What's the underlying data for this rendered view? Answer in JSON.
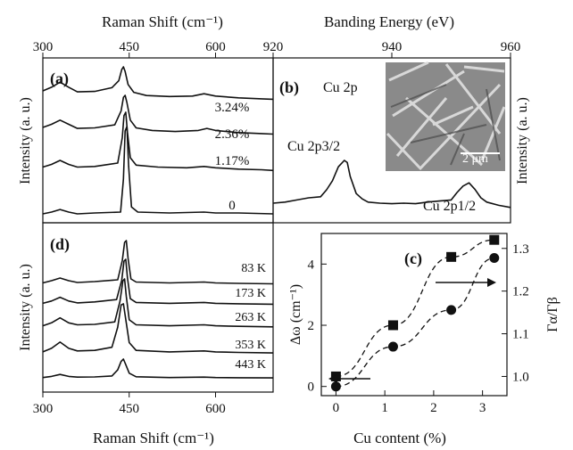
{
  "figure": {
    "top_left_axis_label": "Raman Shift (cm⁻¹)",
    "top_right_axis_label": "Banding Energy (eV)",
    "bottom_left_axis_label": "Raman Shift (cm⁻¹)",
    "bottom_right_axis_label": "Cu content (%)",
    "intensity_label": "Intensity (a. u.)"
  },
  "chart_data": [
    {
      "panel": "(a)",
      "type": "line",
      "xlabel": "Raman Shift (cm⁻¹)",
      "ylabel": "Intensity (a. u.)",
      "xlim": [
        300,
        700
      ],
      "xticks": [
        300,
        450,
        600
      ],
      "x_axis_position": "top",
      "grid": false,
      "series": [
        {
          "name": "3.24%",
          "x": [
            300,
            315,
            330,
            345,
            360,
            390,
            420,
            432,
            437,
            440,
            443,
            448,
            458,
            480,
            520,
            560,
            580,
            600,
            640,
            680,
            700
          ],
          "y": [
            0.48,
            0.56,
            0.67,
            0.56,
            0.46,
            0.47,
            0.55,
            0.7,
            0.94,
            1.0,
            0.9,
            0.62,
            0.45,
            0.38,
            0.36,
            0.37,
            0.42,
            0.37,
            0.33,
            0.31,
            0.3
          ]
        },
        {
          "name": "2.36%",
          "x": [
            300,
            315,
            330,
            345,
            360,
            390,
            425,
            436,
            440,
            443,
            446,
            452,
            462,
            490,
            530,
            570,
            585,
            600,
            640,
            680,
            700
          ],
          "y": [
            0.38,
            0.44,
            0.52,
            0.44,
            0.36,
            0.37,
            0.43,
            0.7,
            0.96,
            1.0,
            0.86,
            0.52,
            0.37,
            0.32,
            0.3,
            0.32,
            0.36,
            0.32,
            0.28,
            0.26,
            0.25
          ]
        },
        {
          "name": "1.17%",
          "x": [
            300,
            315,
            330,
            345,
            360,
            390,
            430,
            438,
            441,
            444,
            447,
            452,
            462,
            500,
            550,
            580,
            600,
            640,
            680,
            700
          ],
          "y": [
            0.18,
            0.22,
            0.28,
            0.22,
            0.18,
            0.19,
            0.24,
            0.62,
            0.95,
            1.0,
            0.7,
            0.32,
            0.21,
            0.18,
            0.17,
            0.19,
            0.17,
            0.15,
            0.14,
            0.13
          ]
        },
        {
          "name": "0",
          "x": [
            300,
            315,
            330,
            345,
            360,
            390,
            435,
            440,
            443,
            446,
            449,
            454,
            465,
            520,
            580,
            600,
            640,
            700
          ],
          "y": [
            0.0,
            0.02,
            0.05,
            0.02,
            0.0,
            0.01,
            0.02,
            0.4,
            0.95,
            1.0,
            0.55,
            0.08,
            0.02,
            0.01,
            0.02,
            0.01,
            0.01,
            0.0
          ]
        }
      ]
    },
    {
      "panel": "(b)",
      "type": "line",
      "title": "Cu 2p",
      "xlabel": "Banding Energy (eV)",
      "ylabel": "Intensity (a. u.)",
      "xlim": [
        920,
        960
      ],
      "xticks": [
        920,
        940,
        960
      ],
      "x_axis_position": "top",
      "annotations": [
        "Cu 2p3/2",
        "Cu 2p1/2"
      ],
      "inset_scale_bar": "2 μm",
      "series": [
        {
          "name": "",
          "x": [
            920,
            922,
            924,
            926,
            928,
            929,
            930,
            931,
            932,
            932.5,
            933,
            934,
            935,
            936,
            938,
            940,
            942,
            944,
            946,
            948,
            950,
            951,
            952,
            953,
            954,
            955,
            956,
            958,
            960
          ],
          "y": [
            0.2,
            0.22,
            0.26,
            0.3,
            0.32,
            0.45,
            0.62,
            0.88,
            1.0,
            0.96,
            0.7,
            0.38,
            0.28,
            0.22,
            0.2,
            0.19,
            0.2,
            0.19,
            0.22,
            0.24,
            0.26,
            0.4,
            0.52,
            0.58,
            0.46,
            0.3,
            0.22,
            0.16,
            0.12
          ]
        }
      ]
    },
    {
      "panel": "(d)",
      "type": "line",
      "xlabel": "Raman Shift (cm⁻¹)",
      "ylabel": "Intensity (a. u.)",
      "xlim": [
        300,
        700
      ],
      "xticks": [
        300,
        450,
        600
      ],
      "x_axis_position": "bottom",
      "series": [
        {
          "name": "83 K",
          "x": [
            300,
            315,
            330,
            345,
            360,
            390,
            430,
            438,
            442,
            445,
            448,
            453,
            462,
            520,
            580,
            600,
            640,
            700
          ],
          "y": [
            0.05,
            0.1,
            0.16,
            0.1,
            0.06,
            0.08,
            0.12,
            0.55,
            0.96,
            1.0,
            0.6,
            0.14,
            0.07,
            0.05,
            0.07,
            0.05,
            0.04,
            0.03
          ]
        },
        {
          "name": "173 K",
          "x": [
            300,
            315,
            330,
            345,
            360,
            390,
            428,
            437,
            441,
            444,
            447,
            452,
            462,
            520,
            580,
            600,
            640,
            700
          ],
          "y": [
            0.05,
            0.1,
            0.18,
            0.1,
            0.06,
            0.08,
            0.13,
            0.55,
            0.96,
            1.0,
            0.6,
            0.15,
            0.07,
            0.05,
            0.07,
            0.05,
            0.04,
            0.03
          ]
        },
        {
          "name": "263 K",
          "x": [
            300,
            315,
            330,
            345,
            360,
            390,
            425,
            434,
            439,
            442,
            445,
            450,
            462,
            520,
            580,
            600,
            640,
            700
          ],
          "y": [
            0.06,
            0.12,
            0.22,
            0.12,
            0.08,
            0.09,
            0.14,
            0.55,
            0.96,
            1.0,
            0.65,
            0.18,
            0.08,
            0.06,
            0.08,
            0.06,
            0.05,
            0.04
          ]
        },
        {
          "name": "353 K",
          "x": [
            300,
            315,
            330,
            345,
            360,
            390,
            420,
            430,
            436,
            440,
            444,
            450,
            462,
            520,
            580,
            600,
            640,
            700
          ],
          "y": [
            0.07,
            0.14,
            0.26,
            0.14,
            0.09,
            0.1,
            0.16,
            0.55,
            0.98,
            1.0,
            0.7,
            0.25,
            0.1,
            0.07,
            0.09,
            0.07,
            0.06,
            0.05
          ]
        },
        {
          "name": "443 K",
          "x": [
            300,
            315,
            330,
            345,
            360,
            390,
            420,
            430,
            436,
            440,
            444,
            450,
            462,
            520,
            580,
            600,
            640,
            700
          ],
          "y": [
            0.06,
            0.12,
            0.22,
            0.12,
            0.08,
            0.09,
            0.14,
            0.45,
            0.88,
            1.0,
            0.72,
            0.28,
            0.1,
            0.06,
            0.08,
            0.06,
            0.05,
            0.04
          ]
        }
      ]
    },
    {
      "panel": "(c)",
      "type": "scatter",
      "xlabel": "Cu content (%)",
      "ylabel": "Δω (cm⁻¹)",
      "y2label": "Γα/Γβ",
      "xlim": [
        -0.3,
        3.5
      ],
      "ylim": [
        -0.3,
        5.0
      ],
      "y2lim": [
        0.955,
        1.335
      ],
      "xticks": [
        0,
        1,
        2,
        3
      ],
      "yticks": [
        0,
        2,
        4
      ],
      "y2ticks": [
        1.0,
        1.1,
        1.2,
        1.3
      ],
      "series": [
        {
          "name": "",
          "marker": "circle",
          "axis": "left",
          "x": [
            0,
            1.17,
            2.36,
            3.24
          ],
          "y": [
            0.0,
            1.3,
            2.5,
            4.2
          ]
        },
        {
          "name": "",
          "marker": "square",
          "axis": "right",
          "x": [
            0,
            1.17,
            2.36,
            3.24
          ],
          "y": [
            1.0,
            1.12,
            1.28,
            1.32
          ]
        }
      ]
    }
  ]
}
